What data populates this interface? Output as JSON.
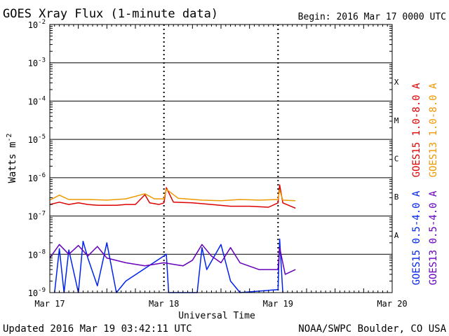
{
  "chart_data": {
    "type": "line",
    "title": "GOES Xray Flux (1-minute data)",
    "begin_label": "Begin:  2016 Mar 17 0000 UTC",
    "xlabel": "Universal Time",
    "ylabel": "Watts m",
    "ylabel_exp": "-2",
    "y_scale": "log",
    "ylim": [
      1e-09,
      0.01
    ],
    "y_ticks": [
      {
        "base": "10",
        "exp": "-2"
      },
      {
        "base": "10",
        "exp": "-3"
      },
      {
        "base": "10",
        "exp": "-4"
      },
      {
        "base": "10",
        "exp": "-5"
      },
      {
        "base": "10",
        "exp": "-6"
      },
      {
        "base": "10",
        "exp": "-7"
      },
      {
        "base": "10",
        "exp": "-8"
      },
      {
        "base": "10",
        "exp": "-9"
      }
    ],
    "x_range_days": [
      "2016-03-17",
      "2016-03-20"
    ],
    "x_ticks": [
      "Mar 17",
      "Mar 18",
      "Mar 19",
      "Mar 20"
    ],
    "flare_classes": [
      "X",
      "M",
      "C",
      "B",
      "A"
    ],
    "grid": true,
    "series": [
      {
        "name": "GOES15 1.0-8.0 A",
        "color": "#dd0000",
        "points": [
          [
            "2016-03-17 00:00",
            2e-07
          ],
          [
            "2016-03-17 02:00",
            2.3e-07
          ],
          [
            "2016-03-17 04:00",
            2e-07
          ],
          [
            "2016-03-17 06:00",
            2.2e-07
          ],
          [
            "2016-03-17 08:00",
            2e-07
          ],
          [
            "2016-03-17 10:00",
            1.9e-07
          ],
          [
            "2016-03-17 14:00",
            1.9e-07
          ],
          [
            "2016-03-17 16:00",
            2e-07
          ],
          [
            "2016-03-17 18:00",
            2e-07
          ],
          [
            "2016-03-17 20:00",
            3.6e-07
          ],
          [
            "2016-03-17 21:00",
            2.2e-07
          ],
          [
            "2016-03-17 23:00",
            2e-07
          ],
          [
            "2016-03-18 00:00",
            2.2e-07
          ],
          [
            "2016-03-18 00:30",
            5.5e-07
          ],
          [
            "2016-03-18 02:00",
            2.3e-07
          ],
          [
            "2016-03-18 06:00",
            2.2e-07
          ],
          [
            "2016-03-18 10:00",
            2e-07
          ],
          [
            "2016-03-18 14:00",
            1.8e-07
          ],
          [
            "2016-03-18 18:00",
            1.8e-07
          ],
          [
            "2016-03-18 22:00",
            1.7e-07
          ],
          [
            "2016-03-19 00:00",
            2.2e-07
          ],
          [
            "2016-03-19 00:20",
            6.5e-07
          ],
          [
            "2016-03-19 01:00",
            2.2e-07
          ],
          [
            "2016-03-19 03:40",
            1.6e-07
          ]
        ]
      },
      {
        "name": "GOES13 1.0-8.0 A",
        "color": "#ee9900",
        "points": [
          [
            "2016-03-17 00:00",
            2.6e-07
          ],
          [
            "2016-03-17 02:00",
            3.5e-07
          ],
          [
            "2016-03-17 04:00",
            2.7e-07
          ],
          [
            "2016-03-17 08:00",
            2.7e-07
          ],
          [
            "2016-03-17 12:00",
            2.6e-07
          ],
          [
            "2016-03-17 16:00",
            2.8e-07
          ],
          [
            "2016-03-17 20:00",
            3.8e-07
          ],
          [
            "2016-03-17 22:00",
            2.8e-07
          ],
          [
            "2016-03-18 00:00",
            2.8e-07
          ],
          [
            "2016-03-18 00:30",
            5e-07
          ],
          [
            "2016-03-18 03:00",
            2.9e-07
          ],
          [
            "2016-03-18 08:00",
            2.6e-07
          ],
          [
            "2016-03-18 12:00",
            2.5e-07
          ],
          [
            "2016-03-18 16:00",
            2.7e-07
          ],
          [
            "2016-03-18 20:00",
            2.6e-07
          ],
          [
            "2016-03-19 00:00",
            2.7e-07
          ],
          [
            "2016-03-19 00:20",
            4.8e-07
          ],
          [
            "2016-03-19 01:00",
            2.6e-07
          ],
          [
            "2016-03-19 03:40",
            2.5e-07
          ]
        ]
      },
      {
        "name": "GOES15 0.5-4.0 A",
        "color": "#0022ee",
        "points": [
          [
            "2016-03-17 01:00",
            1e-09
          ],
          [
            "2016-03-17 02:00",
            1.4e-08
          ],
          [
            "2016-03-17 03:00",
            1e-09
          ],
          [
            "2016-03-17 04:00",
            1.3e-08
          ],
          [
            "2016-03-17 06:00",
            1e-09
          ],
          [
            "2016-03-17 07:00",
            2.2e-08
          ],
          [
            "2016-03-17 08:00",
            8e-09
          ],
          [
            "2016-03-17 10:00",
            1.5e-09
          ],
          [
            "2016-03-17 12:00",
            2e-08
          ],
          [
            "2016-03-17 14:00",
            1e-09
          ],
          [
            "2016-03-17 16:00",
            2e-09
          ],
          [
            "2016-03-18 00:30",
            1e-08
          ],
          [
            "2016-03-18 01:00",
            1e-09
          ],
          [
            "2016-03-18 07:00",
            1e-09
          ],
          [
            "2016-03-18 08:00",
            1.5e-08
          ],
          [
            "2016-03-18 09:00",
            4e-09
          ],
          [
            "2016-03-18 12:00",
            1.8e-08
          ],
          [
            "2016-03-18 14:00",
            2e-09
          ],
          [
            "2016-03-18 16:00",
            1e-09
          ],
          [
            "2016-03-19 00:00",
            1.2e-09
          ],
          [
            "2016-03-19 00:20",
            2.5e-08
          ],
          [
            "2016-03-19 01:00",
            1e-09
          ]
        ]
      },
      {
        "name": "GOES13 0.5-4.0 A",
        "color": "#6600bb",
        "points": [
          [
            "2016-03-17 00:00",
            8e-09
          ],
          [
            "2016-03-17 02:00",
            1.8e-08
          ],
          [
            "2016-03-17 04:00",
            1e-08
          ],
          [
            "2016-03-17 06:00",
            1.7e-08
          ],
          [
            "2016-03-17 08:00",
            9e-09
          ],
          [
            "2016-03-17 10:00",
            1.6e-08
          ],
          [
            "2016-03-17 12:00",
            8e-09
          ],
          [
            "2016-03-17 16:00",
            6e-09
          ],
          [
            "2016-03-17 20:00",
            5e-09
          ],
          [
            "2016-03-18 00:00",
            6e-09
          ],
          [
            "2016-03-18 04:00",
            5e-09
          ],
          [
            "2016-03-18 06:00",
            7e-09
          ],
          [
            "2016-03-18 08:00",
            1.8e-08
          ],
          [
            "2016-03-18 10:00",
            9e-09
          ],
          [
            "2016-03-18 12:00",
            6e-09
          ],
          [
            "2016-03-18 14:00",
            1.5e-08
          ],
          [
            "2016-03-18 16:00",
            6e-09
          ],
          [
            "2016-03-18 20:00",
            4e-09
          ],
          [
            "2016-03-19 00:00",
            4e-09
          ],
          [
            "2016-03-19 00:20",
            1.5e-08
          ],
          [
            "2016-03-19 01:30",
            3e-09
          ],
          [
            "2016-03-19 03:40",
            4e-09
          ]
        ]
      }
    ]
  },
  "footer": {
    "updated": "Updated 2016 Mar 19 03:42:11 UTC",
    "credit": "NOAA/SWPC Boulder, CO USA"
  }
}
